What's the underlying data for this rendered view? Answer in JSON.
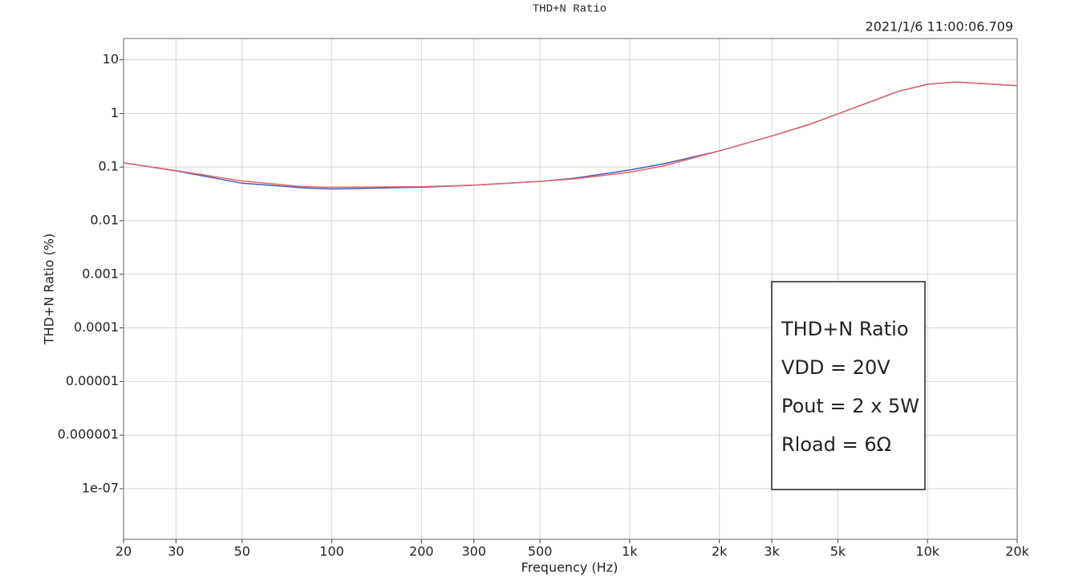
{
  "chart_data": {
    "type": "line",
    "title": "THD+N Ratio",
    "timestamp": "2021/1/6 11:00:06.709",
    "x_label": "Frequency (Hz)",
    "y_label": "THD+N Ratio (%)",
    "x_log": true,
    "y_log": true,
    "grid": true,
    "xlim": [
      20,
      20000
    ],
    "ylim": [
      1.14e-08,
      25
    ],
    "xticks": [
      20,
      30,
      50,
      100,
      200,
      300,
      500,
      {
        "value": 1000,
        "label": "1k"
      },
      {
        "value": 2000,
        "label": "2k"
      },
      {
        "value": 3000,
        "label": "3k"
      },
      {
        "value": 5000,
        "label": "5k"
      },
      {
        "value": 10000,
        "label": "10k"
      },
      {
        "value": 20000,
        "label": "20k"
      }
    ],
    "yticks": [
      10,
      1,
      0.1,
      0.01,
      0.001,
      0.0001,
      1e-05,
      1e-06,
      {
        "value": 1e-07,
        "label": "1e-07"
      }
    ],
    "x": [
      20,
      30,
      50,
      80,
      100,
      200,
      300,
      500,
      650,
      1000,
      1300,
      2000,
      3000,
      4000,
      5000,
      8000,
      10000,
      12500,
      20000
    ],
    "series": [
      {
        "color": "#4a5bb8",
        "values": [
          0.12,
          0.085,
          0.05,
          0.041,
          0.039,
          0.042,
          0.046,
          0.054,
          0.062,
          0.088,
          0.115,
          0.2,
          0.38,
          0.62,
          0.98,
          2.6,
          3.5,
          3.85,
          3.3
        ]
      },
      {
        "color": "#e06666",
        "values": [
          0.12,
          0.086,
          0.055,
          0.043,
          0.042,
          0.043,
          0.046,
          0.054,
          0.06,
          0.08,
          0.105,
          0.2,
          0.38,
          0.62,
          0.98,
          2.6,
          3.5,
          3.85,
          3.3
        ]
      }
    ],
    "annotation": [
      "THD+N Ratio",
      "VDD = 20V",
      "Pout = 2 x 5W",
      "Rload = 6Ω"
    ]
  }
}
